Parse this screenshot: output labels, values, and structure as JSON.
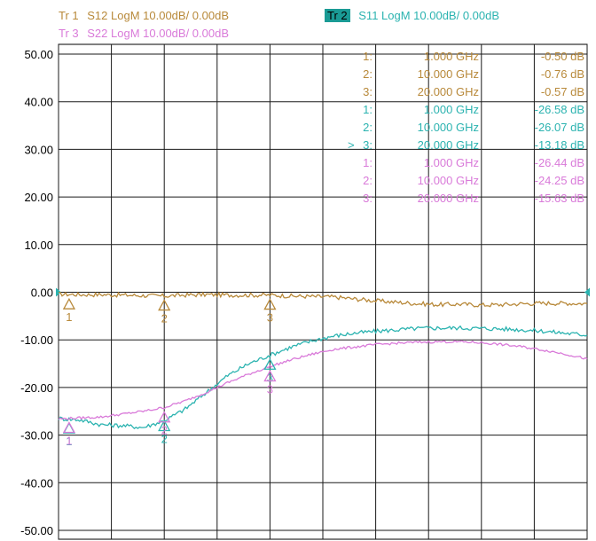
{
  "header": {
    "traces": [
      {
        "id": "Tr 1",
        "label": "S12 LogM 10.00dB/  0.00dB",
        "color": "#b8893a",
        "active": false
      },
      {
        "id": "Tr 2",
        "label": "S11 LogM 10.00dB/  0.00dB",
        "color": "#2bb3b0",
        "active": true
      },
      {
        "id": "Tr 3",
        "label": "S22 LogM 10.00dB/  0.00dB",
        "color": "#d97ad9",
        "active": false
      }
    ]
  },
  "chart_data": {
    "type": "line",
    "title": "",
    "xlabel": "",
    "ylabel": "",
    "xlim": [
      0,
      50
    ],
    "ylim": [
      -50,
      50
    ],
    "y_ticks": [
      "50.00",
      "40.00",
      "30.00",
      "20.00",
      "10.00",
      "0.00",
      "-10.00",
      "-20.00",
      "-30.00",
      "-40.00",
      "-50.00"
    ],
    "grid": true,
    "reference_level": 0,
    "series": [
      {
        "name": "S12",
        "color": "#b8893a",
        "x": [
          0,
          2,
          4,
          6,
          8,
          10,
          12,
          14,
          16,
          18,
          20,
          22,
          24,
          26,
          28,
          30,
          32,
          34,
          36,
          38,
          40,
          42,
          44,
          46,
          48,
          50
        ],
        "y": [
          -0.4,
          -0.5,
          -0.5,
          -0.6,
          -0.7,
          -0.8,
          -0.6,
          -0.5,
          -0.6,
          -0.6,
          -0.6,
          -0.8,
          -0.9,
          -1.0,
          -1.4,
          -1.8,
          -2.1,
          -2.4,
          -2.6,
          -2.5,
          -2.7,
          -2.6,
          -2.4,
          -2.3,
          -2.3,
          -2.4
        ]
      },
      {
        "name": "S11",
        "color": "#2bb3b0",
        "x": [
          0,
          2,
          4,
          6,
          8,
          10,
          12,
          14,
          16,
          18,
          20,
          22,
          24,
          26,
          28,
          30,
          32,
          34,
          36,
          38,
          40,
          42,
          44,
          46,
          48,
          50
        ],
        "y": [
          -26.5,
          -26.8,
          -27.8,
          -28.0,
          -28.4,
          -27.0,
          -24.5,
          -21.0,
          -17.5,
          -15.0,
          -13.2,
          -11.5,
          -10.2,
          -9.2,
          -8.6,
          -8.2,
          -7.9,
          -7.6,
          -7.5,
          -7.5,
          -7.6,
          -7.7,
          -7.9,
          -8.2,
          -8.6,
          -9.0
        ]
      },
      {
        "name": "S22",
        "color": "#d97ad9",
        "x": [
          0,
          2,
          4,
          6,
          8,
          10,
          12,
          14,
          16,
          18,
          20,
          22,
          24,
          26,
          28,
          30,
          32,
          34,
          36,
          38,
          40,
          42,
          44,
          46,
          48,
          50
        ],
        "y": [
          -26.6,
          -26.4,
          -26.2,
          -25.6,
          -25.0,
          -24.2,
          -22.8,
          -21.0,
          -19.0,
          -17.2,
          -15.6,
          -14.2,
          -13.0,
          -12.0,
          -11.5,
          -11.0,
          -10.7,
          -10.5,
          -10.4,
          -10.4,
          -10.6,
          -11.0,
          -11.5,
          -12.2,
          -13.0,
          -14.0
        ]
      }
    ],
    "markers": [
      {
        "series": "S12",
        "number": "1",
        "x": 1,
        "y": -0.5
      },
      {
        "series": "S12",
        "number": "2",
        "x": 10,
        "y": -0.76
      },
      {
        "series": "S12",
        "number": "3",
        "x": 20,
        "y": -0.57
      },
      {
        "series": "S11",
        "number": "1",
        "x": 1,
        "y": -26.58
      },
      {
        "series": "S11",
        "number": "2",
        "x": 10,
        "y": -26.07
      },
      {
        "series": "S11",
        "number": "3",
        "x": 20,
        "y": -13.18
      },
      {
        "series": "S22",
        "number": "1",
        "x": 1,
        "y": -26.44
      },
      {
        "series": "S22",
        "number": "2",
        "x": 10,
        "y": -24.25
      },
      {
        "series": "S22",
        "number": "3",
        "x": 20,
        "y": -15.63
      }
    ],
    "marker_table": [
      {
        "num": "1:",
        "freq": "1.000 GHz",
        "value": "-0.50 dB",
        "color": "#b8893a",
        "active": false
      },
      {
        "num": "2:",
        "freq": "10.000 GHz",
        "value": "-0.76 dB",
        "color": "#b8893a",
        "active": false
      },
      {
        "num": "3:",
        "freq": "20.000 GHz",
        "value": "-0.57 dB",
        "color": "#b8893a",
        "active": false
      },
      {
        "num": "1:",
        "freq": "1.000 GHz",
        "value": "-26.58 dB",
        "color": "#2bb3b0",
        "active": false
      },
      {
        "num": "2:",
        "freq": "10.000 GHz",
        "value": "-26.07 dB",
        "color": "#2bb3b0",
        "active": false
      },
      {
        "num": "3:",
        "freq": "20.000 GHz",
        "value": "-13.18 dB",
        "color": "#2bb3b0",
        "active": true
      },
      {
        "num": "1:",
        "freq": "1.000 GHz",
        "value": "-26.44 dB",
        "color": "#d97ad9",
        "active": false
      },
      {
        "num": "2:",
        "freq": "10.000 GHz",
        "value": "-24.25 dB",
        "color": "#d97ad9",
        "active": false
      },
      {
        "num": "3:",
        "freq": "20.000 GHz",
        "value": "-15.63 dB",
        "color": "#d97ad9",
        "active": false
      }
    ],
    "active_marker_symbol": ">"
  }
}
